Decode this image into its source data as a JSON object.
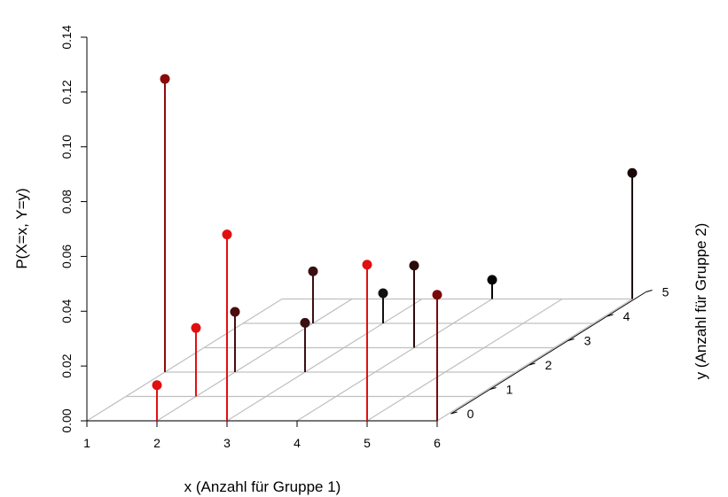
{
  "chart_data": {
    "type": "scatter3d",
    "xlabel": "x (Anzahl für Gruppe 1)",
    "ylabel": "y (Anzahl für Gruppe 2)",
    "zlabel": "P(X=x, Y=y)",
    "xlim": [
      1,
      6
    ],
    "ylim": [
      0,
      5
    ],
    "zlim": [
      0,
      0.14
    ],
    "x_ticks": [
      "1",
      "2",
      "3",
      "4",
      "5",
      "6"
    ],
    "y_ticks": [
      "0",
      "1",
      "2",
      "3",
      "4",
      "5"
    ],
    "z_ticks": [
      "0.00",
      "0.02",
      "0.04",
      "0.06",
      "0.08",
      "0.10",
      "0.12",
      "0.14"
    ],
    "grid": true,
    "points": [
      {
        "x": 2,
        "y": 0,
        "p": 0.013,
        "color": "#e01010"
      },
      {
        "x": 2,
        "y": 1,
        "p": 0.025,
        "color": "#e01010"
      },
      {
        "x": 3,
        "y": 0,
        "p": 0.068,
        "color": "#e01010"
      },
      {
        "x": 5,
        "y": 0,
        "p": 0.057,
        "color": "#e01010"
      },
      {
        "x": 1,
        "y": 2,
        "p": 0.107,
        "color": "#8b0a0a"
      },
      {
        "x": 6,
        "y": 0,
        "p": 0.046,
        "color": "#7a0a0a"
      },
      {
        "x": 2,
        "y": 2,
        "p": 0.022,
        "color": "#4a0c0c"
      },
      {
        "x": 3,
        "y": 2,
        "p": 0.018,
        "color": "#3a1010"
      },
      {
        "x": 2,
        "y": 4,
        "p": 0.019,
        "color": "#3a1010"
      },
      {
        "x": 4,
        "y": 3,
        "p": 0.03,
        "color": "#2a0a0a"
      },
      {
        "x": 3,
        "y": 4,
        "p": 0.011,
        "color": "#101010"
      },
      {
        "x": 4,
        "y": 5,
        "p": 0.007,
        "color": "#050505"
      },
      {
        "x": 6,
        "y": 5,
        "p": 0.046,
        "color": "#1a0808"
      }
    ]
  }
}
